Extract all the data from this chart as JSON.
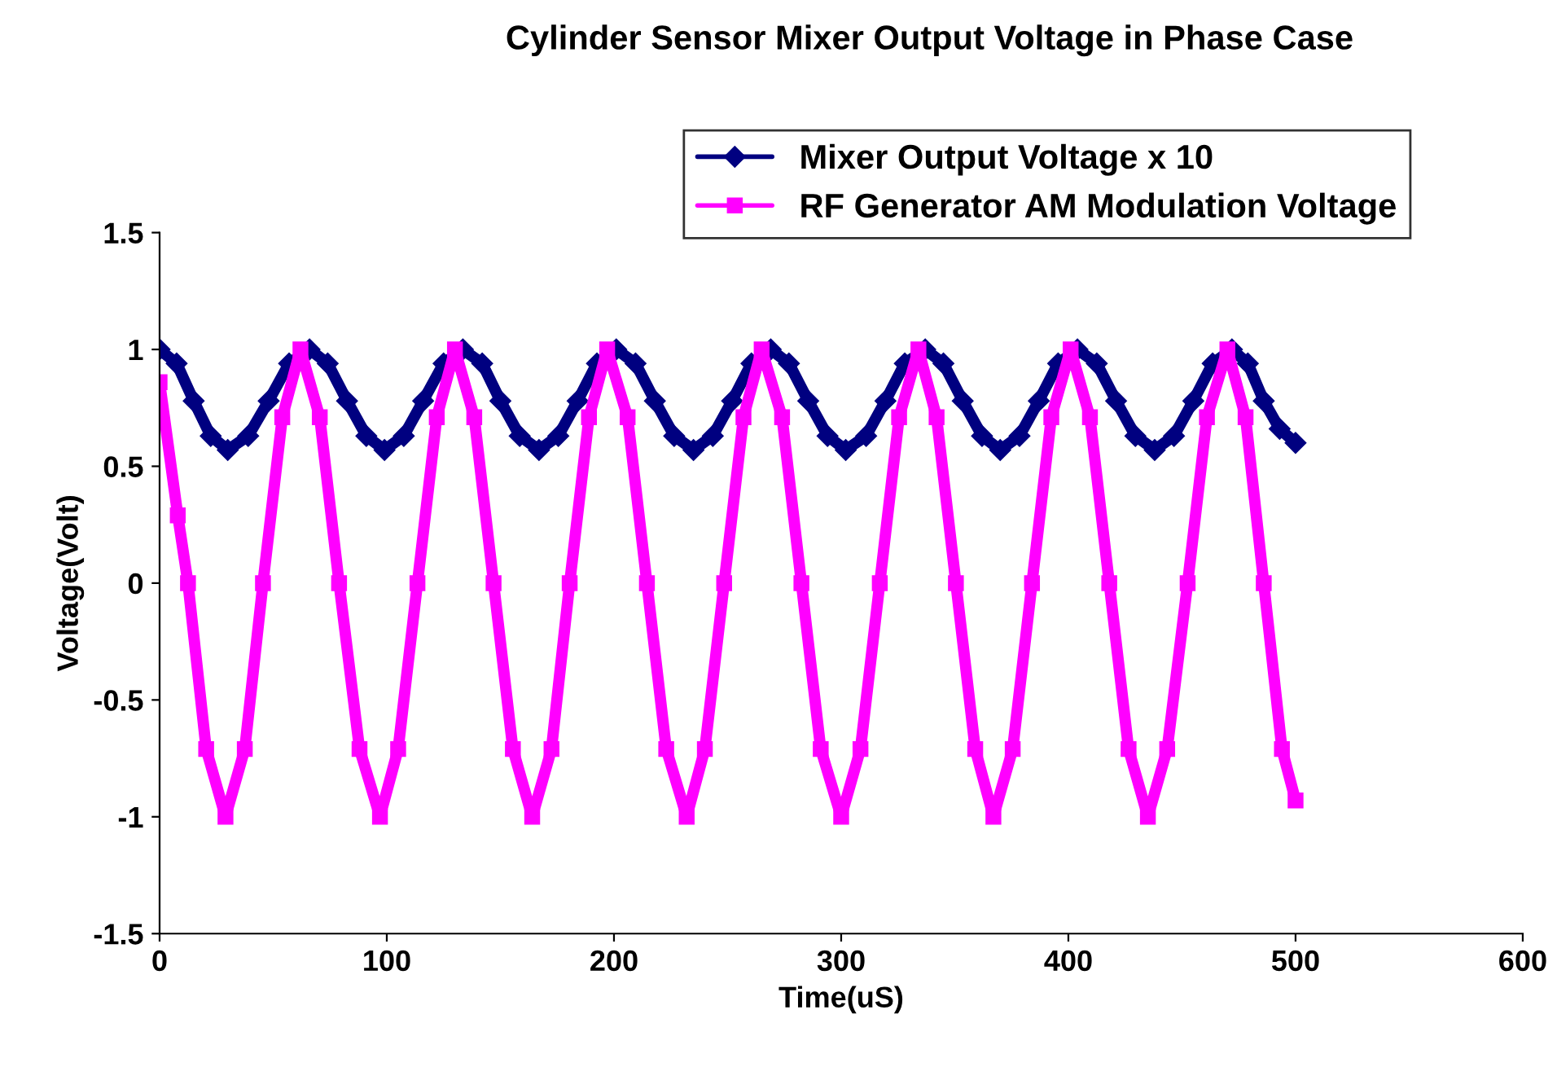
{
  "chart_data": {
    "type": "line",
    "title": "Cylinder Sensor Mixer Output Voltage in Phase Case",
    "xlabel": "Time(uS)",
    "ylabel": "Voltage(Volt)",
    "xlim": [
      0,
      600
    ],
    "xticks": [
      0,
      100,
      200,
      300,
      400,
      500,
      600
    ],
    "ylim": [
      -1.5,
      1.5
    ],
    "yticks": [
      -1.5,
      -1,
      -0.5,
      0,
      0.5,
      1,
      1.5
    ],
    "grid": false,
    "legend": "top right",
    "series": [
      {
        "name": "Mixer Output Voltage x 10",
        "color": "#000080",
        "marker": "diamond",
        "x": [
          0,
          7.5,
          15,
          22.5,
          30,
          39,
          48,
          57,
          66,
          74,
          82.5,
          91,
          99,
          107.5,
          116,
          125,
          133.5,
          142,
          150,
          158.5,
          167,
          175.5,
          184,
          192.5,
          201,
          209.5,
          218,
          226.5,
          235,
          243.5,
          252,
          260.5,
          269,
          277,
          285.5,
          294,
          302,
          311,
          319.5,
          328,
          337,
          345,
          353.5,
          362,
          370,
          378.5,
          387,
          395.5,
          404,
          412.5,
          421,
          429.5,
          438,
          446.5,
          455,
          463.5,
          472,
          479,
          486,
          493,
          500
        ],
        "values": [
          1.0,
          0.94,
          0.78,
          0.63,
          0.57,
          0.63,
          0.78,
          0.94,
          1.0,
          0.94,
          0.78,
          0.63,
          0.57,
          0.63,
          0.78,
          0.94,
          1.0,
          0.94,
          0.78,
          0.63,
          0.57,
          0.63,
          0.78,
          0.94,
          1.0,
          0.94,
          0.78,
          0.63,
          0.57,
          0.63,
          0.78,
          0.94,
          1.0,
          0.94,
          0.78,
          0.63,
          0.57,
          0.63,
          0.78,
          0.94,
          1.0,
          0.94,
          0.78,
          0.63,
          0.57,
          0.63,
          0.78,
          0.94,
          1.0,
          0.94,
          0.78,
          0.63,
          0.57,
          0.63,
          0.78,
          0.94,
          1.0,
          0.94,
          0.78,
          0.66,
          0.6
        ]
      },
      {
        "name": "RF Generator AM Modulation Voltage",
        "color": "#ff00ff",
        "marker": "square",
        "x": [
          0,
          8,
          12.5,
          20.5,
          29,
          37.5,
          45.5,
          54,
          62,
          70.5,
          79,
          88,
          97,
          105,
          113.5,
          122,
          130,
          138.5,
          147,
          155.5,
          164,
          172.5,
          180.5,
          189,
          197,
          206,
          214.5,
          223,
          232,
          240,
          248.5,
          257,
          265,
          274,
          282.5,
          291,
          300,
          308.5,
          317,
          325.5,
          334,
          342,
          350.5,
          359,
          367,
          375.5,
          384,
          392.5,
          401,
          409.5,
          418,
          426.5,
          435,
          443.5,
          452.5,
          461,
          470,
          478,
          486,
          494,
          500
        ],
        "values": [
          0.86,
          0.29,
          0,
          -0.71,
          -1,
          -0.71,
          0,
          0.71,
          1,
          0.71,
          0,
          -0.71,
          -1,
          -0.71,
          0,
          0.71,
          1,
          0.71,
          0,
          -0.71,
          -1,
          -0.71,
          0,
          0.71,
          1,
          0.71,
          0,
          -0.71,
          -1,
          -0.71,
          0,
          0.71,
          1,
          0.71,
          0,
          -0.71,
          -1,
          -0.71,
          0,
          0.71,
          1,
          0.71,
          0,
          -0.71,
          -1,
          -0.71,
          0,
          0.71,
          1,
          0.71,
          0,
          -0.71,
          -1,
          -0.71,
          0,
          0.71,
          1,
          0.71,
          0,
          -0.71,
          -0.93
        ]
      }
    ]
  }
}
